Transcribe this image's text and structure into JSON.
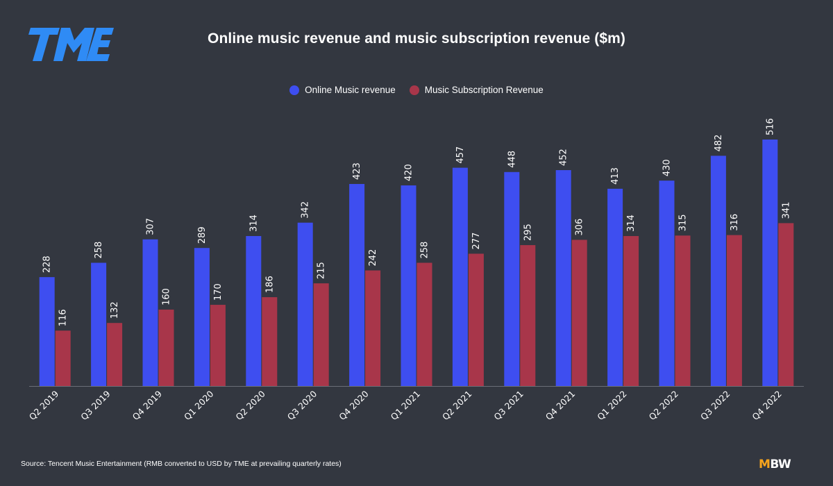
{
  "logo": {
    "name": "TME",
    "color": "#2f8bf5"
  },
  "chart_data": {
    "type": "bar",
    "title": "Online music revenue and music subscription revenue ($m)",
    "categories": [
      "Q2 2019",
      "Q3 2019",
      "Q4 2019",
      "Q1 2020",
      "Q2 2020",
      "Q3 2020",
      "Q4 2020",
      "Q1 2021",
      "Q2 2021",
      "Q3 2021",
      "Q4 2021",
      "Q1 2022",
      "Q2 2022",
      "Q3 2022",
      "Q4 2022"
    ],
    "series": [
      {
        "name": "Online Music revenue",
        "color": "#3e4ef0",
        "values": [
          228,
          258,
          307,
          289,
          314,
          342,
          423,
          420,
          457,
          448,
          452,
          413,
          430,
          482,
          516
        ]
      },
      {
        "name": "Music Subscription Revenue",
        "color": "#a8364a",
        "values": [
          116,
          132,
          160,
          170,
          186,
          215,
          242,
          258,
          277,
          295,
          306,
          314,
          315,
          316,
          341
        ]
      }
    ],
    "xlabel": "",
    "ylabel": "",
    "ylim": [
      0,
      516
    ],
    "grid": false,
    "legend": "top-center",
    "data_labels": true
  },
  "footer": {
    "source": "Source: Tencent Music Entertainment (RMB converted to USD by TME at prevailing quarterly rates)",
    "brand_m": "M",
    "brand_bw": "BW",
    "brand_accent": "#f7a41d"
  }
}
